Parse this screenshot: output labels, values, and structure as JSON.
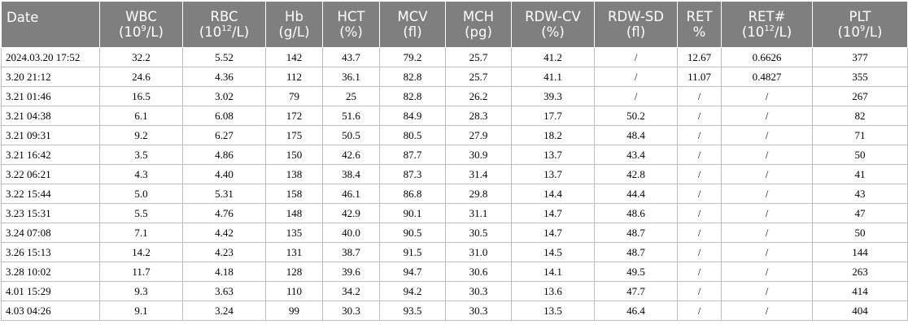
{
  "table": {
    "columns": [
      {
        "line1": "Date",
        "unit_pre": "",
        "unit_sup": "",
        "unit_post": ""
      },
      {
        "line1": "WBC",
        "unit_pre": "(10",
        "unit_sup": "9",
        "unit_post": "/L)"
      },
      {
        "line1": "RBC",
        "unit_pre": "(10",
        "unit_sup": "12",
        "unit_post": "/L)"
      },
      {
        "line1": "Hb",
        "unit_pre": "(g/L)",
        "unit_sup": "",
        "unit_post": ""
      },
      {
        "line1": "HCT",
        "unit_pre": "(%)",
        "unit_sup": "",
        "unit_post": ""
      },
      {
        "line1": "MCV",
        "unit_pre": "(fl)",
        "unit_sup": "",
        "unit_post": ""
      },
      {
        "line1": "MCH",
        "unit_pre": "(pg)",
        "unit_sup": "",
        "unit_post": ""
      },
      {
        "line1": "RDW-CV",
        "unit_pre": "(%)",
        "unit_sup": "",
        "unit_post": ""
      },
      {
        "line1": "RDW-SD",
        "unit_pre": "(fl)",
        "unit_sup": "",
        "unit_post": ""
      },
      {
        "line1": "RET",
        "unit_pre": "%",
        "unit_sup": "",
        "unit_post": ""
      },
      {
        "line1": "RET#",
        "unit_pre": "(10",
        "unit_sup": "12",
        "unit_post": "/L)"
      },
      {
        "line1": "PLT",
        "unit_pre": "(10",
        "unit_sup": "9",
        "unit_post": "/L)"
      }
    ],
    "rows": [
      [
        "2024.03.20 17:52",
        "32.2",
        "5.52",
        "142",
        "43.7",
        "79.2",
        "25.7",
        "41.2",
        "/",
        "12.67",
        "0.6626",
        "377"
      ],
      [
        "3.20 21:12",
        "24.6",
        "4.36",
        "112",
        "36.1",
        "82.8",
        "25.7",
        "41.1",
        "/",
        "11.07",
        "0.4827",
        "355"
      ],
      [
        "3.21 01:46",
        "16.5",
        "3.02",
        "79",
        "25",
        "82.8",
        "26.2",
        "39.3",
        "/",
        "/",
        "/",
        "267"
      ],
      [
        "3.21 04:38",
        "6.1",
        "6.08",
        "172",
        "51.6",
        "84.9",
        "28.3",
        "17.7",
        "50.2",
        "/",
        "/",
        "82"
      ],
      [
        "3.21 09:31",
        "9.2",
        "6.27",
        "175",
        "50.5",
        "80.5",
        "27.9",
        "18.2",
        "48.4",
        "/",
        "/",
        "71"
      ],
      [
        "3.21 16:42",
        "3.5",
        "4.86",
        "150",
        "42.6",
        "87.7",
        "30.9",
        "13.7",
        "43.4",
        "/",
        "/",
        "50"
      ],
      [
        "3.22 06:21",
        "4.3",
        "4.40",
        "138",
        "38.4",
        "87.3",
        "31.4",
        "13.7",
        "42.8",
        "/",
        "/",
        "41"
      ],
      [
        "3.22 15:44",
        "5.0",
        "5.31",
        "158",
        "46.1",
        "86.8",
        "29.8",
        "14.4",
        "44.4",
        "/",
        "/",
        "43"
      ],
      [
        "3.23 15:31",
        "5.5",
        "4.76",
        "148",
        "42.9",
        "90.1",
        "31.1",
        "14.7",
        "48.6",
        "/",
        "/",
        "47"
      ],
      [
        "3.24 07:08",
        "7.1",
        "4.42",
        "135",
        "40.0",
        "90.5",
        "30.5",
        "14.7",
        "48.7",
        "/",
        "/",
        "50"
      ],
      [
        "3.26 15:13",
        "14.2",
        "4.23",
        "131",
        "38.7",
        "91.5",
        "31.0",
        "14.5",
        "48.7",
        "/",
        "/",
        "144"
      ],
      [
        "3.28 10:02",
        "11.7",
        "4.18",
        "128",
        "39.6",
        "94.7",
        "30.6",
        "14.1",
        "49.5",
        "/",
        "/",
        "263"
      ],
      [
        "4.01 15:29",
        "9.3",
        "3.63",
        "110",
        "34.2",
        "94.2",
        "30.3",
        "13.6",
        "47.7",
        "/",
        "/",
        "414"
      ],
      [
        "4.03 04:26",
        "9.1",
        "3.24",
        "99",
        "30.3",
        "93.5",
        "30.3",
        "13.5",
        "46.4",
        "/",
        "/",
        "404"
      ]
    ]
  }
}
